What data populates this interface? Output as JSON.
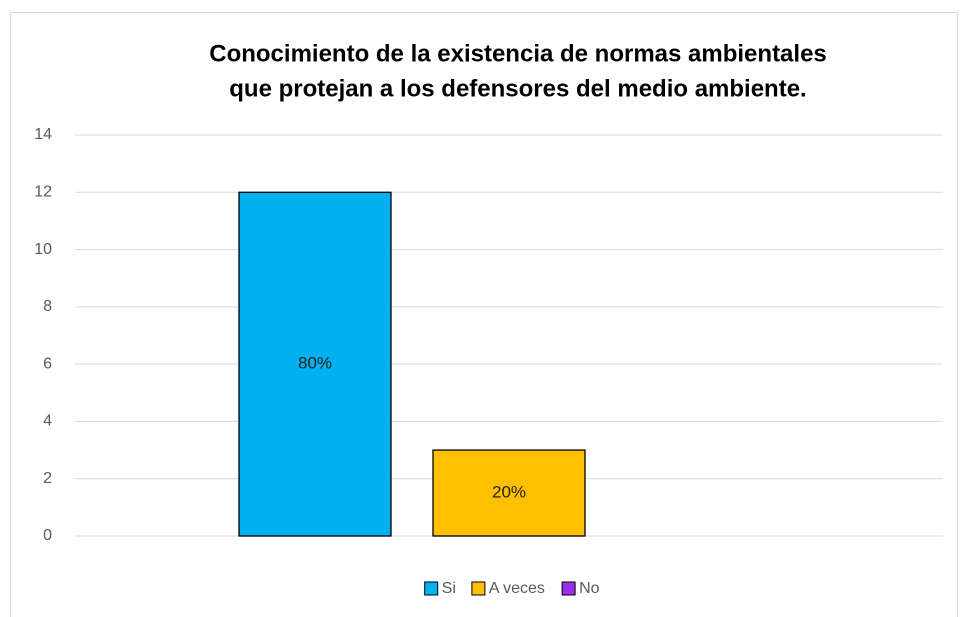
{
  "chart_data": {
    "type": "bar",
    "title": [
      "Conocimiento de la existencia de normas ambientales",
      "que protejan a los defensores del medio ambiente."
    ],
    "series": [
      {
        "name": "Si",
        "color": "#00b0f0",
        "values": [
          12
        ]
      },
      {
        "name": "A veces",
        "color": "#ffc000",
        "values": [
          3
        ]
      },
      {
        "name": "No",
        "color": "#9b30e8",
        "values": [
          0
        ]
      }
    ],
    "annotations": [
      "80%",
      "20%"
    ],
    "ylim": [
      0,
      14
    ],
    "yticks": [
      0,
      2,
      4,
      6,
      8,
      10,
      12,
      14
    ],
    "grid": true,
    "legend": "bottom"
  }
}
